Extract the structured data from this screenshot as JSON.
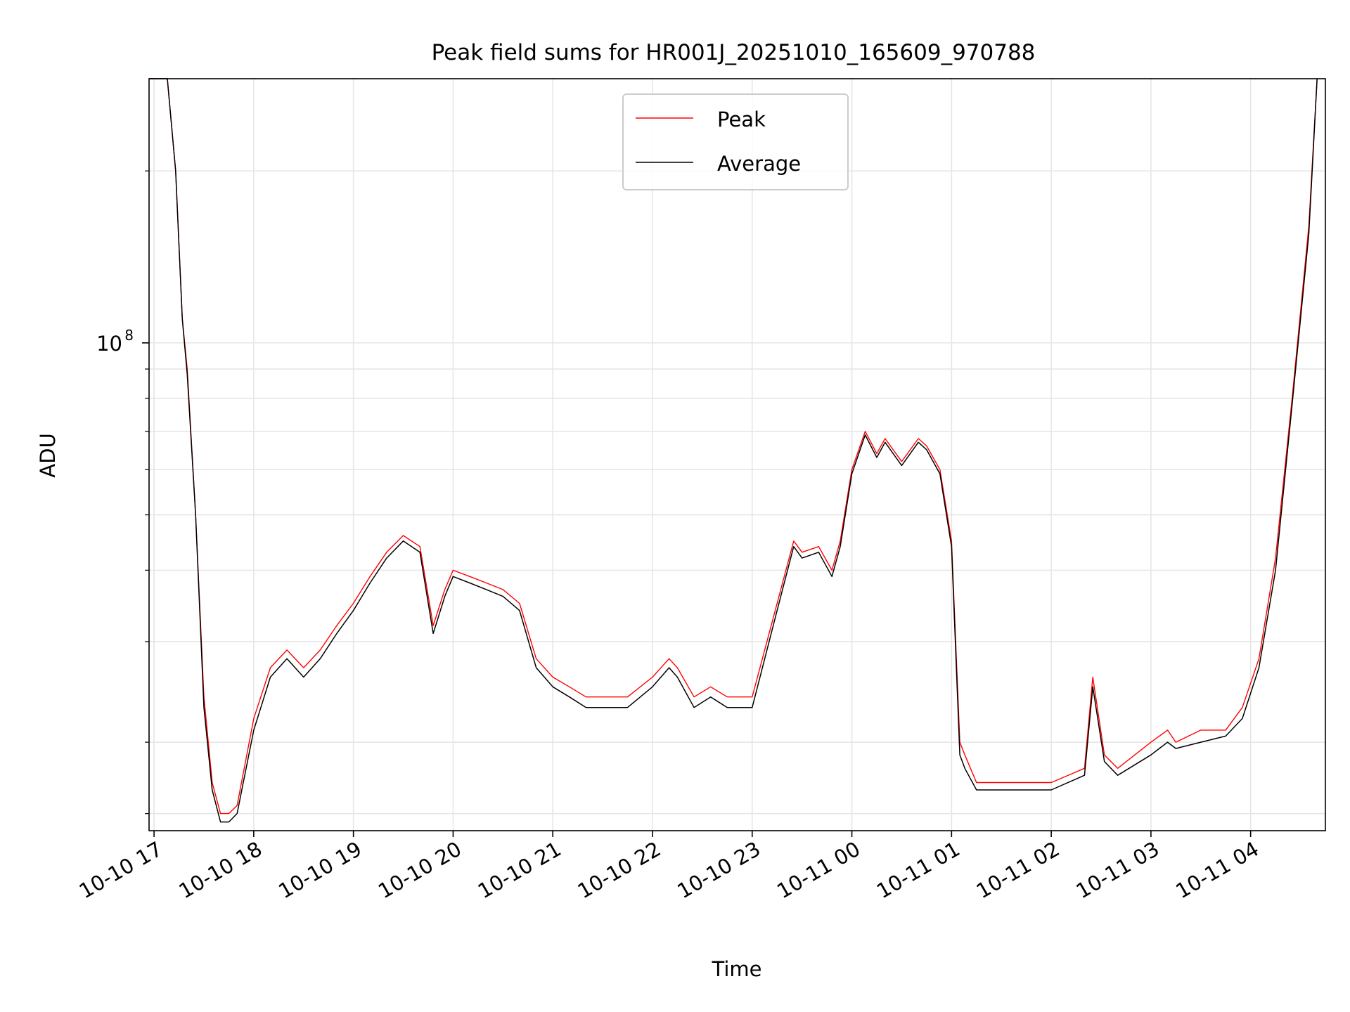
{
  "chart_data": {
    "type": "line",
    "title": "Peak field sums for HR001J_20251010_165609_970788",
    "xlabel": "Time",
    "ylabel": "ADU",
    "y_scale": "log",
    "ylim": [
      14000000,
      290000000
    ],
    "xlim": [
      "2025-10-10 16:57",
      "2025-10-11 04:45"
    ],
    "grid": true,
    "legend_position": "top-center",
    "x_ticks": [
      {
        "t": "2025-10-10 17:00",
        "label": "10-10 17"
      },
      {
        "t": "2025-10-10 18:00",
        "label": "10-10 18"
      },
      {
        "t": "2025-10-10 19:00",
        "label": "10-10 19"
      },
      {
        "t": "2025-10-10 20:00",
        "label": "10-10 20"
      },
      {
        "t": "2025-10-10 21:00",
        "label": "10-10 21"
      },
      {
        "t": "2025-10-10 22:00",
        "label": "10-10 22"
      },
      {
        "t": "2025-10-10 23:00",
        "label": "10-10 23"
      },
      {
        "t": "2025-10-11 00:00",
        "label": "10-11 00"
      },
      {
        "t": "2025-10-11 01:00",
        "label": "10-11 01"
      },
      {
        "t": "2025-10-11 02:00",
        "label": "10-11 02"
      },
      {
        "t": "2025-10-11 03:00",
        "label": "10-11 03"
      },
      {
        "t": "2025-10-11 04:00",
        "label": "10-11 04"
      }
    ],
    "y_major_ticks": [
      {
        "value": 100000000,
        "base": "10",
        "exp": "8"
      }
    ],
    "y_minor_ticks": [
      15000000,
      20000000,
      30000000,
      40000000,
      50000000,
      60000000,
      70000000,
      80000000,
      90000000,
      200000000
    ],
    "series": [
      {
        "name": "Peak",
        "color": "#ff0000",
        "x": [
          "2025-10-10 16:57",
          "2025-10-10 17:08",
          "2025-10-10 17:13",
          "2025-10-10 17:17",
          "2025-10-10 17:20",
          "2025-10-10 17:25",
          "2025-10-10 17:30",
          "2025-10-10 17:35",
          "2025-10-10 17:40",
          "2025-10-10 17:45",
          "2025-10-10 17:50",
          "2025-10-10 18:00",
          "2025-10-10 18:10",
          "2025-10-10 18:20",
          "2025-10-10 18:30",
          "2025-10-10 18:40",
          "2025-10-10 18:50",
          "2025-10-10 19:00",
          "2025-10-10 19:10",
          "2025-10-10 19:20",
          "2025-10-10 19:30",
          "2025-10-10 19:40",
          "2025-10-10 19:48",
          "2025-10-10 19:55",
          "2025-10-10 20:00",
          "2025-10-10 20:10",
          "2025-10-10 20:20",
          "2025-10-10 20:30",
          "2025-10-10 20:40",
          "2025-10-10 20:50",
          "2025-10-10 21:00",
          "2025-10-10 21:10",
          "2025-10-10 21:20",
          "2025-10-10 21:30",
          "2025-10-10 21:45",
          "2025-10-10 22:00",
          "2025-10-10 22:10",
          "2025-10-10 22:15",
          "2025-10-10 22:25",
          "2025-10-10 22:35",
          "2025-10-10 22:45",
          "2025-10-10 23:00",
          "2025-10-10 23:15",
          "2025-10-10 23:25",
          "2025-10-10 23:30",
          "2025-10-10 23:40",
          "2025-10-10 23:48",
          "2025-10-10 23:53",
          "2025-10-11 00:00",
          "2025-10-11 00:08",
          "2025-10-11 00:15",
          "2025-10-11 00:20",
          "2025-10-11 00:30",
          "2025-10-11 00:40",
          "2025-10-11 00:45",
          "2025-10-11 00:53",
          "2025-10-11 01:00",
          "2025-10-11 01:05",
          "2025-10-11 01:08",
          "2025-10-11 01:15",
          "2025-10-11 01:30",
          "2025-10-11 02:00",
          "2025-10-11 02:20",
          "2025-10-11 02:25",
          "2025-10-11 02:32",
          "2025-10-11 02:40",
          "2025-10-11 03:00",
          "2025-10-11 03:10",
          "2025-10-11 03:15",
          "2025-10-11 03:30",
          "2025-10-11 03:45",
          "2025-10-11 03:55",
          "2025-10-11 04:05",
          "2025-10-11 04:15",
          "2025-10-11 04:25",
          "2025-10-11 04:35",
          "2025-10-11 04:40"
        ],
        "y": [
          290000000,
          290000000,
          200000000,
          110000000,
          90000000,
          50000000,
          24000000,
          17000000,
          15000000,
          15000000,
          15500000,
          22000000,
          27000000,
          29000000,
          27000000,
          29000000,
          32000000,
          35000000,
          39000000,
          43000000,
          46000000,
          44000000,
          32000000,
          37000000,
          40000000,
          39000000,
          38000000,
          37000000,
          35000000,
          28000000,
          26000000,
          25000000,
          24000000,
          24000000,
          24000000,
          26000000,
          28000000,
          27000000,
          24000000,
          25000000,
          24000000,
          24000000,
          35000000,
          45000000,
          43000000,
          44000000,
          40000000,
          45000000,
          60000000,
          70000000,
          64000000,
          68000000,
          62000000,
          68000000,
          66000000,
          60000000,
          45000000,
          20000000,
          19000000,
          17000000,
          17000000,
          17000000,
          18000000,
          26000000,
          19000000,
          18000000,
          20000000,
          21000000,
          20000000,
          21000000,
          21000000,
          23000000,
          28000000,
          42000000,
          80000000,
          160000000,
          290000000
        ]
      },
      {
        "name": "Average",
        "color": "#000000",
        "x": [
          "2025-10-10 16:57",
          "2025-10-10 17:08",
          "2025-10-10 17:13",
          "2025-10-10 17:17",
          "2025-10-10 17:20",
          "2025-10-10 17:25",
          "2025-10-10 17:30",
          "2025-10-10 17:35",
          "2025-10-10 17:40",
          "2025-10-10 17:45",
          "2025-10-10 17:50",
          "2025-10-10 18:00",
          "2025-10-10 18:10",
          "2025-10-10 18:20",
          "2025-10-10 18:30",
          "2025-10-10 18:40",
          "2025-10-10 18:50",
          "2025-10-10 19:00",
          "2025-10-10 19:10",
          "2025-10-10 19:20",
          "2025-10-10 19:30",
          "2025-10-10 19:40",
          "2025-10-10 19:48",
          "2025-10-10 19:55",
          "2025-10-10 20:00",
          "2025-10-10 20:10",
          "2025-10-10 20:20",
          "2025-10-10 20:30",
          "2025-10-10 20:40",
          "2025-10-10 20:50",
          "2025-10-10 21:00",
          "2025-10-10 21:10",
          "2025-10-10 21:20",
          "2025-10-10 21:30",
          "2025-10-10 21:45",
          "2025-10-10 22:00",
          "2025-10-10 22:10",
          "2025-10-10 22:15",
          "2025-10-10 22:25",
          "2025-10-10 22:35",
          "2025-10-10 22:45",
          "2025-10-10 23:00",
          "2025-10-10 23:15",
          "2025-10-10 23:25",
          "2025-10-10 23:30",
          "2025-10-10 23:40",
          "2025-10-10 23:48",
          "2025-10-10 23:53",
          "2025-10-11 00:00",
          "2025-10-11 00:08",
          "2025-10-11 00:15",
          "2025-10-11 00:20",
          "2025-10-11 00:30",
          "2025-10-11 00:40",
          "2025-10-11 00:45",
          "2025-10-11 00:53",
          "2025-10-11 01:00",
          "2025-10-11 01:05",
          "2025-10-11 01:08",
          "2025-10-11 01:15",
          "2025-10-11 01:30",
          "2025-10-11 02:00",
          "2025-10-11 02:20",
          "2025-10-11 02:25",
          "2025-10-11 02:32",
          "2025-10-11 02:40",
          "2025-10-11 03:00",
          "2025-10-11 03:10",
          "2025-10-11 03:15",
          "2025-10-11 03:30",
          "2025-10-11 03:45",
          "2025-10-11 03:55",
          "2025-10-11 04:05",
          "2025-10-11 04:15",
          "2025-10-11 04:25",
          "2025-10-11 04:35",
          "2025-10-11 04:40"
        ],
        "y": [
          290000000,
          290000000,
          200000000,
          110000000,
          88000000,
          50000000,
          23000000,
          16500000,
          14500000,
          14500000,
          15000000,
          21000000,
          26000000,
          28000000,
          26000000,
          28000000,
          31000000,
          34000000,
          38000000,
          42000000,
          45000000,
          43000000,
          31000000,
          36000000,
          39000000,
          38000000,
          37000000,
          36000000,
          34000000,
          27000000,
          25000000,
          24000000,
          23000000,
          23000000,
          23000000,
          25000000,
          27000000,
          26000000,
          23000000,
          24000000,
          23000000,
          23000000,
          34000000,
          44000000,
          42000000,
          43000000,
          39000000,
          44000000,
          59000000,
          69000000,
          63000000,
          67000000,
          61000000,
          67000000,
          65000000,
          59000000,
          44000000,
          19000000,
          18000000,
          16500000,
          16500000,
          16500000,
          17500000,
          25000000,
          18500000,
          17500000,
          19000000,
          20000000,
          19500000,
          20000000,
          20500000,
          22000000,
          27000000,
          40000000,
          78000000,
          155000000,
          290000000
        ]
      }
    ]
  }
}
